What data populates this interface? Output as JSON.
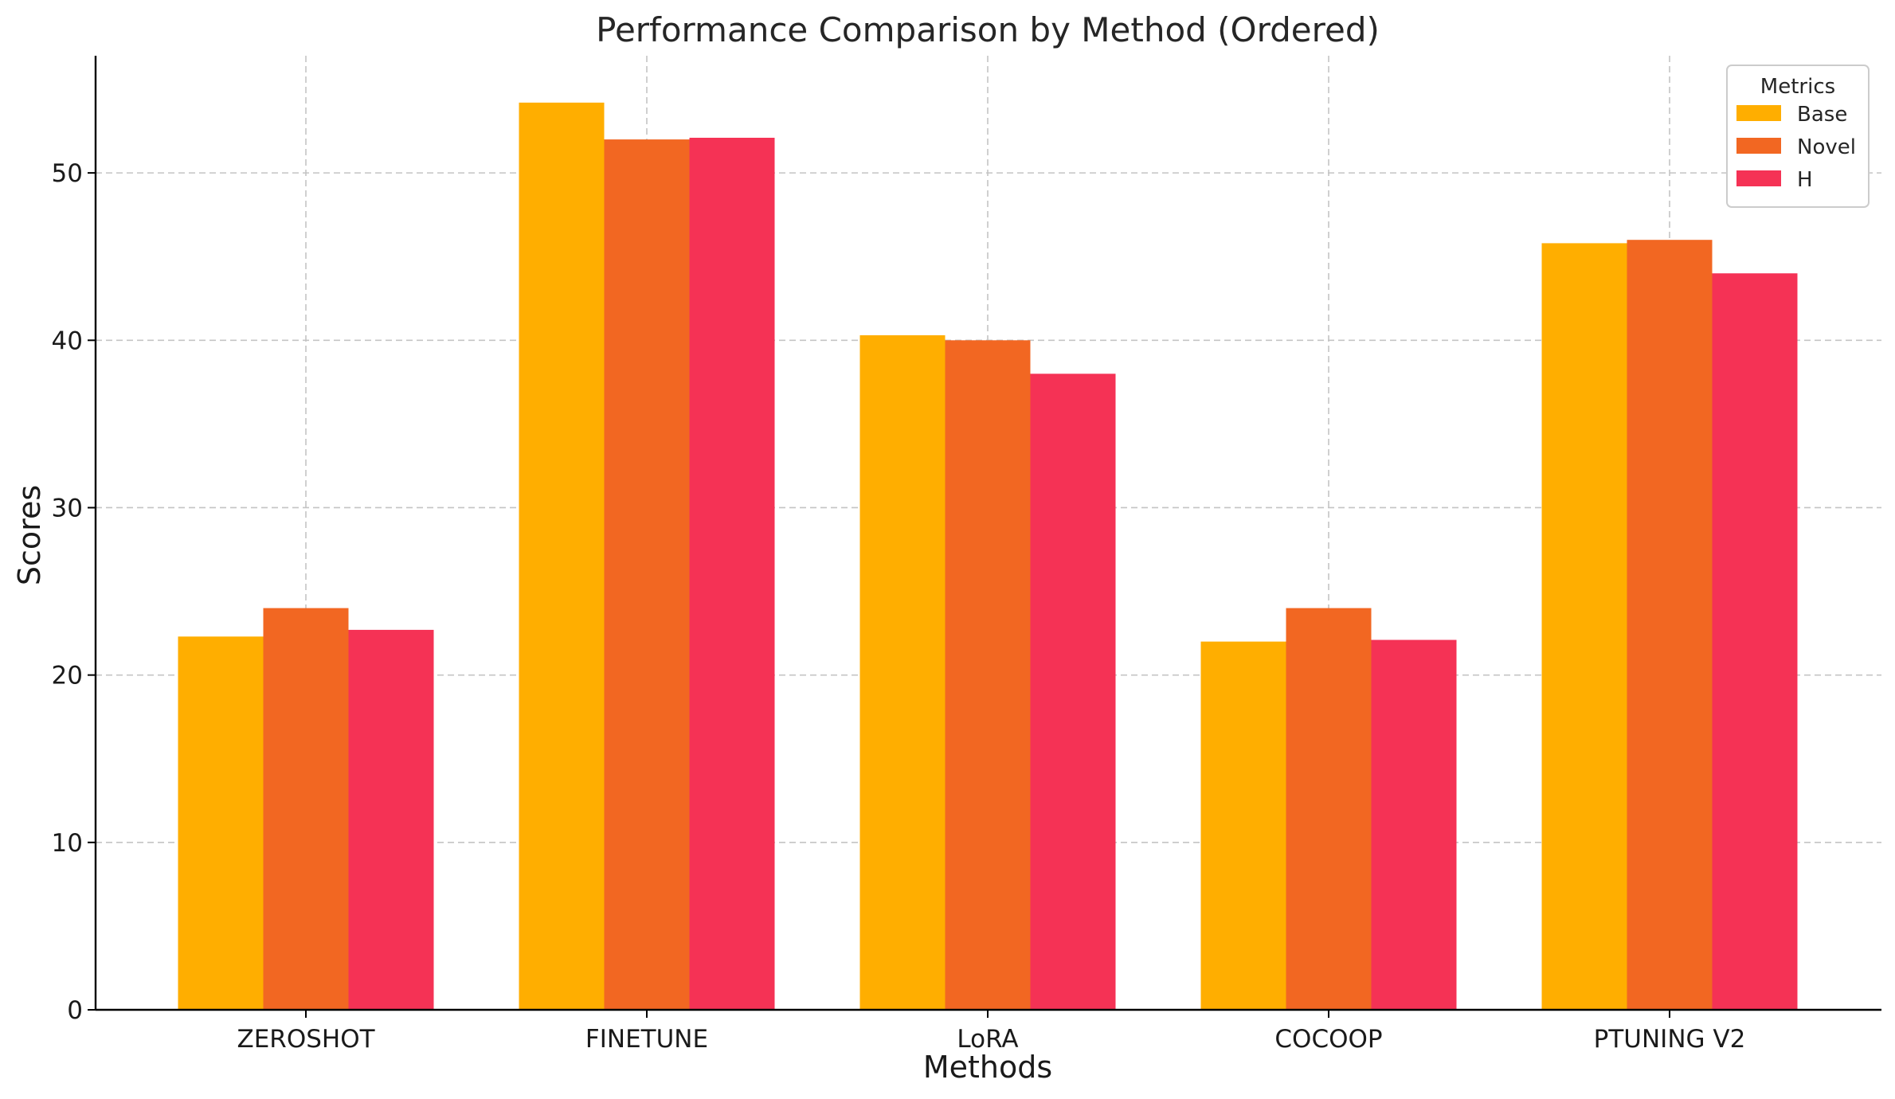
{
  "chart_data": {
    "type": "bar",
    "title": "Performance Comparison by Method (Ordered)",
    "xlabel": "Methods",
    "ylabel": "Scores",
    "categories": [
      "ZEROSHOT",
      "FINETUNE",
      "LoRA",
      "COCOOP",
      "PTUNING V2"
    ],
    "series": [
      {
        "name": "Base",
        "color": "#FFAE00",
        "values": [
          22.3,
          54.2,
          40.3,
          22.0,
          45.8
        ]
      },
      {
        "name": "Novel",
        "color": "#F26722",
        "values": [
          24.0,
          52.0,
          40.0,
          24.0,
          46.0
        ]
      },
      {
        "name": "H",
        "color": "#F53255",
        "values": [
          22.7,
          52.1,
          38.0,
          22.1,
          44.0
        ]
      }
    ],
    "ylim": [
      0,
      57
    ],
    "yticks": [
      0,
      10,
      20,
      30,
      40,
      50
    ],
    "grid": true,
    "legend": {
      "title": "Metrics",
      "position": "top-right"
    }
  }
}
